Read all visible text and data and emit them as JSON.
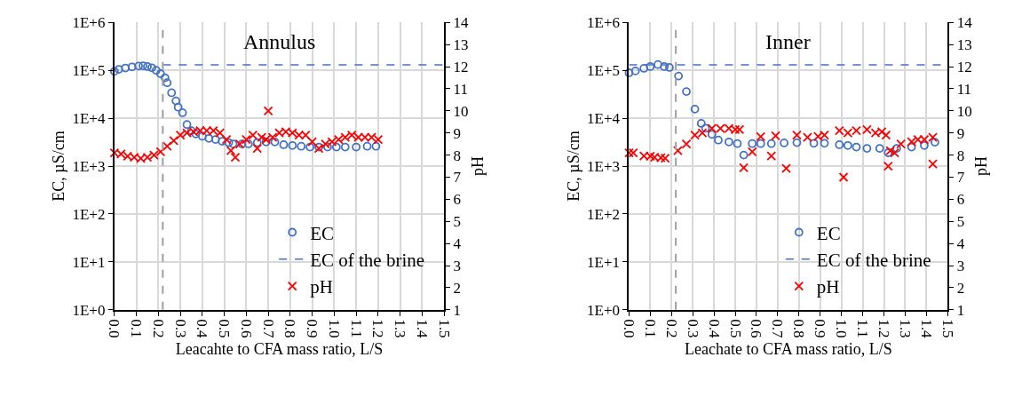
{
  "chart_data": [
    {
      "type": "scatter",
      "title": "Annulus",
      "xlabel": "Leacahte to CFA mass ratio, L/S",
      "ylabel": "EC, µS/cm",
      "y2label": "pH",
      "log": "y",
      "grid": true,
      "legend": "bottom",
      "xlim": [
        0,
        1.5
      ],
      "xticks": [
        {
          "value": 0,
          "label": "0.0"
        },
        {
          "value": 0.1,
          "label": "0.1"
        },
        {
          "value": 0.2,
          "label": "0.2"
        },
        {
          "value": 0.3,
          "label": "0.3"
        },
        {
          "value": 0.4,
          "label": "0.4"
        },
        {
          "value": 0.5,
          "label": "0.5"
        },
        {
          "value": 0.6,
          "label": "0.6"
        },
        {
          "value": 0.7,
          "label": "0.7"
        },
        {
          "value": 0.8,
          "label": "0.8"
        },
        {
          "value": 0.9,
          "label": "0.9"
        },
        {
          "value": 1.0,
          "label": "1.0"
        },
        {
          "value": 1.1,
          "label": "1.1"
        },
        {
          "value": 1.2,
          "label": "1.2"
        },
        {
          "value": 1.3,
          "label": "1.3"
        },
        {
          "value": 1.4,
          "label": "1.4"
        },
        {
          "value": 1.5,
          "label": "1.5"
        }
      ],
      "ylim": [
        1,
        1000000
      ],
      "yticks": [
        {
          "value": 1,
          "label": "1E+0"
        },
        {
          "value": 10,
          "label": "1E+1"
        },
        {
          "value": 100,
          "label": "1E+2"
        },
        {
          "value": 1000,
          "label": "1E+3"
        },
        {
          "value": 10000,
          "label": "1E+4"
        },
        {
          "value": 100000,
          "label": "1E+5"
        },
        {
          "value": 1000000,
          "label": "1E+6"
        }
      ],
      "y2lim": [
        1,
        14
      ],
      "y2ticks": [
        1,
        2,
        3,
        4,
        5,
        6,
        7,
        8,
        9,
        10,
        11,
        12,
        13,
        14
      ],
      "ref_lines": [
        {
          "axis": "x",
          "value": 0.22,
          "color": "#a6a6a6",
          "line_style": "dashed"
        }
      ],
      "series": [
        {
          "name": "EC",
          "marker": "circle",
          "color": "#4472c4",
          "x": [
            0.0,
            0.02,
            0.05,
            0.08,
            0.11,
            0.13,
            0.15,
            0.17,
            0.19,
            0.21,
            0.23,
            0.24,
            0.26,
            0.28,
            0.29,
            0.31,
            0.33,
            0.35,
            0.37,
            0.4,
            0.43,
            0.46,
            0.49,
            0.52,
            0.54,
            0.58,
            0.61,
            0.65,
            0.69,
            0.73,
            0.77,
            0.81,
            0.85,
            0.89,
            0.93,
            0.97,
            1.01,
            1.05,
            1.1,
            1.15,
            1.19
          ],
          "values": [
            95000,
            105000,
            112000,
            118000,
            123000,
            124000,
            120000,
            113000,
            100000,
            85000,
            70000,
            55000,
            34000,
            23000,
            17000,
            13000,
            7400,
            5500,
            4700,
            4200,
            3800,
            3600,
            3300,
            3100,
            2900,
            2900,
            2900,
            3100,
            3200,
            3200,
            2800,
            2700,
            2600,
            2500,
            2500,
            2500,
            2500,
            2500,
            2500,
            2600,
            2600
          ]
        },
        {
          "name": "EC of the brine",
          "type": "line",
          "line_style": "dashed",
          "marker": "none",
          "color": "#4472c4",
          "x": [
            0.22,
            1.5
          ],
          "values": [
            130000,
            130000
          ]
        },
        {
          "name": "pH",
          "marker": "cross",
          "color": "#ff0000",
          "axis": "y2",
          "x": [
            0.0,
            0.03,
            0.06,
            0.09,
            0.12,
            0.15,
            0.18,
            0.21,
            0.24,
            0.27,
            0.3,
            0.33,
            0.36,
            0.39,
            0.42,
            0.45,
            0.48,
            0.51,
            0.53,
            0.55,
            0.57,
            0.6,
            0.63,
            0.65,
            0.67,
            0.69,
            0.7,
            0.72,
            0.75,
            0.78,
            0.81,
            0.84,
            0.87,
            0.9,
            0.93,
            0.96,
            0.99,
            1.02,
            1.05,
            1.08,
            1.11,
            1.14,
            1.17,
            1.2
          ],
          "values": [
            8.1,
            8.05,
            7.95,
            7.9,
            7.85,
            7.9,
            8.0,
            8.15,
            8.4,
            8.65,
            8.9,
            9.0,
            9.05,
            9.1,
            9.1,
            9.1,
            9.0,
            8.7,
            8.2,
            7.9,
            8.5,
            8.7,
            8.9,
            8.3,
            8.8,
            8.7,
            10.0,
            8.8,
            9.0,
            9.05,
            9.0,
            8.9,
            8.9,
            8.6,
            8.3,
            8.5,
            8.6,
            8.7,
            8.8,
            8.9,
            8.8,
            8.8,
            8.8,
            8.7
          ]
        }
      ]
    },
    {
      "type": "scatter",
      "title": "Inner",
      "xlabel": "Leachate to CFA mass ratio, L/S",
      "ylabel": "EC, µS/cm",
      "y2label": "pH",
      "log": "y",
      "grid": true,
      "legend": "bottom",
      "xlim": [
        0,
        1.5
      ],
      "xticks": [
        {
          "value": 0,
          "label": "0.0"
        },
        {
          "value": 0.1,
          "label": "0.1"
        },
        {
          "value": 0.2,
          "label": "0.2"
        },
        {
          "value": 0.3,
          "label": "0.3"
        },
        {
          "value": 0.4,
          "label": "0.4"
        },
        {
          "value": 0.5,
          "label": "0.5"
        },
        {
          "value": 0.6,
          "label": "0.6"
        },
        {
          "value": 0.7,
          "label": "0.7"
        },
        {
          "value": 0.8,
          "label": "0.8"
        },
        {
          "value": 0.9,
          "label": "0.9"
        },
        {
          "value": 1.0,
          "label": "1.0"
        },
        {
          "value": 1.1,
          "label": "1.1"
        },
        {
          "value": 1.2,
          "label": "1.2"
        },
        {
          "value": 1.3,
          "label": "1.3"
        },
        {
          "value": 1.4,
          "label": "1.4"
        },
        {
          "value": 1.5,
          "label": "1.5"
        }
      ],
      "ylim": [
        1,
        1000000
      ],
      "yticks": [
        {
          "value": 1,
          "label": "1E+0"
        },
        {
          "value": 10,
          "label": "1E+1"
        },
        {
          "value": 100,
          "label": "1E+2"
        },
        {
          "value": 1000,
          "label": "1E+3"
        },
        {
          "value": 10000,
          "label": "1E+4"
        },
        {
          "value": 100000,
          "label": "1E+5"
        },
        {
          "value": 1000000,
          "label": "1E+6"
        }
      ],
      "y2lim": [
        1,
        14
      ],
      "y2ticks": [
        1,
        2,
        3,
        4,
        5,
        6,
        7,
        8,
        9,
        10,
        11,
        12,
        13,
        14
      ],
      "ref_lines": [
        {
          "axis": "x",
          "value": 0.22,
          "color": "#a6a6a6",
          "line_style": "dashed"
        }
      ],
      "series": [
        {
          "name": "EC",
          "marker": "circle",
          "color": "#4472c4",
          "x": [
            0.0,
            0.03,
            0.07,
            0.1,
            0.136,
            0.166,
            0.19,
            0.233,
            0.27,
            0.31,
            0.34,
            0.36,
            0.39,
            0.42,
            0.47,
            0.51,
            0.54,
            0.58,
            0.62,
            0.67,
            0.73,
            0.79,
            0.87,
            0.92,
            0.99,
            1.03,
            1.07,
            1.12,
            1.18,
            1.22,
            1.26,
            1.33,
            1.39,
            1.44
          ],
          "values": [
            89000,
            97000,
            110000,
            120000,
            132000,
            120000,
            115000,
            76000,
            36000,
            15500,
            7800,
            6200,
            4600,
            3500,
            3200,
            2950,
            1700,
            2950,
            2950,
            2950,
            3050,
            3100,
            3000,
            3000,
            2800,
            2700,
            2500,
            2350,
            2350,
            1900,
            2350,
            2500,
            2700,
            3160
          ]
        },
        {
          "name": "EC of the brine",
          "type": "line",
          "line_style": "dashed",
          "marker": "none",
          "color": "#4472c4",
          "x": [
            0.0,
            1.5
          ],
          "values": [
            130000,
            130000
          ]
        },
        {
          "name": "pH",
          "marker": "cross",
          "color": "#ff0000",
          "axis": "y2",
          "x": [
            0.0,
            0.02,
            0.07,
            0.1,
            0.12,
            0.15,
            0.17,
            0.23,
            0.27,
            0.31,
            0.345,
            0.39,
            0.43,
            0.47,
            0.5,
            0.52,
            0.54,
            0.58,
            0.62,
            0.67,
            0.69,
            0.74,
            0.79,
            0.84,
            0.89,
            0.92,
            0.99,
            1.01,
            1.03,
            1.07,
            1.12,
            1.16,
            1.19,
            1.21,
            1.22,
            1.23,
            1.25,
            1.28,
            1.33,
            1.36,
            1.39,
            1.43,
            1.43
          ],
          "values": [
            8.1,
            8.1,
            7.96,
            7.95,
            7.9,
            7.88,
            7.86,
            8.2,
            8.5,
            8.9,
            9.0,
            9.2,
            9.2,
            9.2,
            9.15,
            9.15,
            7.43,
            8.15,
            8.83,
            7.96,
            8.87,
            7.4,
            8.9,
            8.8,
            8.84,
            8.9,
            9.1,
            7.0,
            9.0,
            9.1,
            9.15,
            9.0,
            9.05,
            8.9,
            7.5,
            8.2,
            8.1,
            8.5,
            8.6,
            8.7,
            8.7,
            8.8,
            7.6
          ]
        }
      ]
    }
  ]
}
